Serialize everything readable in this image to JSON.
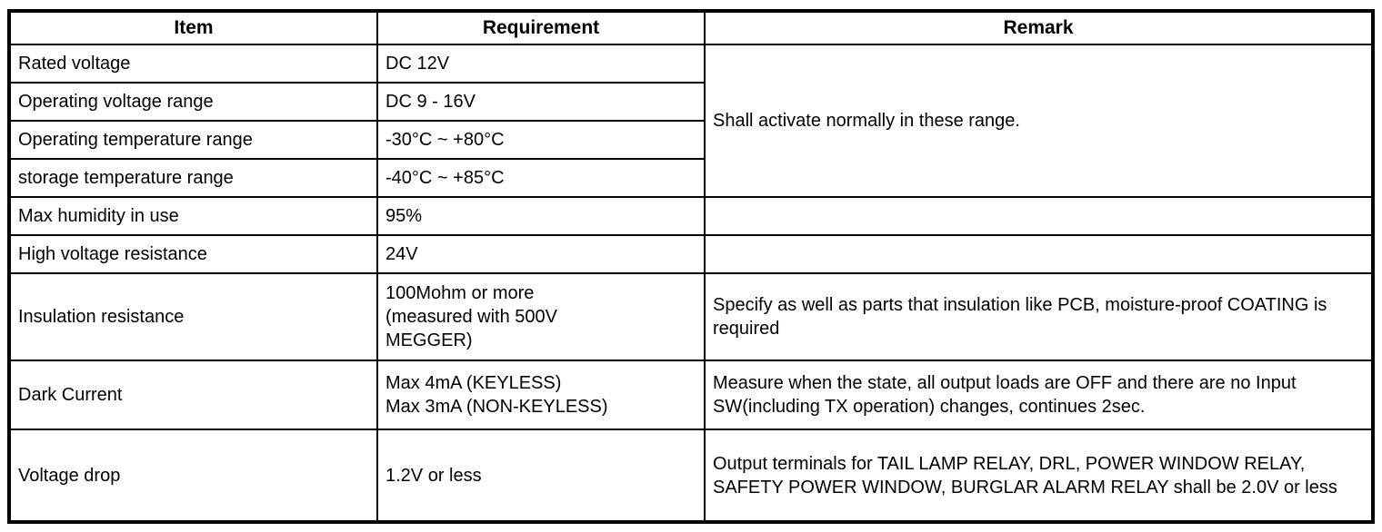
{
  "table": {
    "headers": {
      "item": "Item",
      "requirement": "Requirement",
      "remark": "Remark"
    },
    "merged_remark": "Shall activate normally in these range.",
    "rows": [
      {
        "item": "Rated voltage",
        "requirement": "DC 12V"
      },
      {
        "item": "Operating voltage range",
        "requirement": "DC 9 - 16V"
      },
      {
        "item": "Operating temperature range",
        "requirement": "-30°C ~ +80°C"
      },
      {
        "item": "storage temperature range",
        "requirement": "-40°C ~ +85°C"
      },
      {
        "item": "Max humidity in use",
        "requirement": "95%",
        "remark": ""
      },
      {
        "item": "High voltage resistance",
        "requirement": "24V",
        "remark": ""
      },
      {
        "item": "Insulation resistance",
        "requirement": "100Mohm or more\n(measured with 500V\nMEGGER)",
        "remark": "Specify as well as parts that insulation like PCB, moisture-proof COATING is required"
      },
      {
        "item": "Dark Current",
        "requirement": "Max 4mA (KEYLESS)\nMax 3mA (NON-KEYLESS)",
        "remark": "Measure when the state, all output loads are OFF and there are no Input SW(including TX operation) changes, continues 2sec."
      },
      {
        "item": "Voltage drop",
        "requirement": "1.2V or less",
        "remark": "Output terminals for TAIL LAMP RELAY, DRL, POWER WINDOW RELAY, SAFETY POWER WINDOW, BURGLAR ALARM RELAY shall be 2.0V or less"
      }
    ]
  }
}
